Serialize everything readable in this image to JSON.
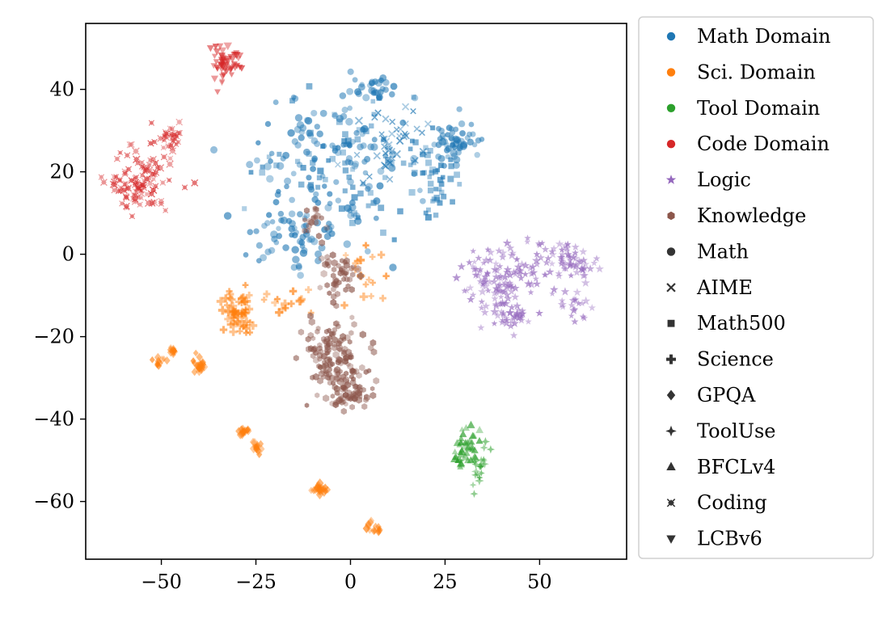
{
  "chart_data": {
    "type": "scatter",
    "title": "",
    "xlabel": "",
    "ylabel": "",
    "xlim": [
      -70,
      73
    ],
    "ylim": [
      -74,
      56
    ],
    "xticks": [
      -50,
      -25,
      0,
      25,
      50
    ],
    "yticks": [
      -60,
      -40,
      -20,
      0,
      20,
      40
    ],
    "xtick_labels": [
      "−50",
      "−25",
      "0",
      "25",
      "50"
    ],
    "ytick_labels": [
      "−60",
      "−40",
      "−20",
      "0",
      "20",
      "40"
    ],
    "grid": false,
    "legend_position": "outside-right",
    "domains": [
      {
        "name": "Math Domain",
        "color": "#1f77b4"
      },
      {
        "name": "Sci. Domain",
        "color": "#ff7f0e"
      },
      {
        "name": "Tool Domain",
        "color": "#2ca02c"
      },
      {
        "name": "Code Domain",
        "color": "#d62728"
      },
      {
        "name": "Logic",
        "color": "#9467bd"
      },
      {
        "name": "Knowledge",
        "color": "#8c564b"
      }
    ],
    "styles": [
      {
        "name": "Math",
        "marker": "circle"
      },
      {
        "name": "AIME",
        "marker": "x"
      },
      {
        "name": "Math500",
        "marker": "square"
      },
      {
        "name": "Science",
        "marker": "plus"
      },
      {
        "name": "GPQA",
        "marker": "diamond"
      },
      {
        "name": "ToolUse",
        "marker": "star4"
      },
      {
        "name": "BFCLv4",
        "marker": "triangle-up"
      },
      {
        "name": "Coding",
        "marker": "x-thin"
      },
      {
        "name": "LCBv6",
        "marker": "triangle-down"
      }
    ],
    "clusters": [
      {
        "domain": "Math Domain",
        "style": "Math",
        "n": 260,
        "regions": [
          {
            "cx": -5,
            "cy": 25,
            "rx": 22,
            "ry": 14,
            "w": 3
          },
          {
            "cx": 5,
            "cy": 40,
            "rx": 4,
            "ry": 3,
            "w": 0.5
          },
          {
            "cx": 28,
            "cy": 27,
            "rx": 6,
            "ry": 5,
            "w": 1
          },
          {
            "cx": -14,
            "cy": 5,
            "rx": 13,
            "ry": 7,
            "w": 1.2
          }
        ]
      },
      {
        "domain": "Math Domain",
        "style": "AIME",
        "n": 45,
        "regions": [
          {
            "cx": 10,
            "cy": 28,
            "rx": 10,
            "ry": 8,
            "w": 1
          }
        ]
      },
      {
        "domain": "Math Domain",
        "style": "Math500",
        "n": 110,
        "regions": [
          {
            "cx": 0,
            "cy": 22,
            "rx": 20,
            "ry": 13,
            "w": 2
          },
          {
            "cx": 22,
            "cy": 18,
            "rx": 6,
            "ry": 7,
            "w": 0.8
          }
        ]
      },
      {
        "domain": "Sci. Domain",
        "style": "Science",
        "n": 90,
        "regions": [
          {
            "cx": -30,
            "cy": -13,
            "rx": 4,
            "ry": 4,
            "w": 2
          },
          {
            "cx": -18,
            "cy": -12,
            "rx": 5,
            "ry": 3,
            "w": 0.8
          },
          {
            "cx": 4,
            "cy": -4,
            "rx": 6,
            "ry": 7,
            "w": 1.2
          },
          {
            "cx": -28,
            "cy": -18,
            "rx": 2,
            "ry": 2,
            "w": 0.4
          }
        ]
      },
      {
        "domain": "Sci. Domain",
        "style": "GPQA",
        "n": 110,
        "regions": [
          {
            "cx": -51,
            "cy": -26,
            "rx": 1.8,
            "ry": 1.4,
            "w": 1
          },
          {
            "cx": -47,
            "cy": -23.5,
            "rx": 1.2,
            "ry": 1,
            "w": 0.5
          },
          {
            "cx": -40,
            "cy": -27.5,
            "rx": 1.6,
            "ry": 1.8,
            "w": 0.7
          },
          {
            "cx": -41,
            "cy": -25,
            "rx": 1,
            "ry": 1,
            "w": 0.3
          },
          {
            "cx": -28.5,
            "cy": -43,
            "rx": 1.2,
            "ry": 1,
            "w": 0.6
          },
          {
            "cx": -25,
            "cy": -47,
            "rx": 1.6,
            "ry": 1.6,
            "w": 0.8
          },
          {
            "cx": -8,
            "cy": -57,
            "rx": 2.5,
            "ry": 1.6,
            "w": 1.1
          },
          {
            "cx": 6,
            "cy": -66.5,
            "rx": 1.8,
            "ry": 1.4,
            "w": 0.9
          }
        ]
      },
      {
        "domain": "Tool Domain",
        "style": "ToolUse",
        "n": 22,
        "regions": [
          {
            "cx": 34,
            "cy": -52,
            "rx": 3,
            "ry": 4,
            "w": 1
          }
        ]
      },
      {
        "domain": "Tool Domain",
        "style": "BFCLv4",
        "n": 45,
        "regions": [
          {
            "cx": 31,
            "cy": -46,
            "rx": 3,
            "ry": 4,
            "w": 1.5
          },
          {
            "cx": 28,
            "cy": -50,
            "rx": 2,
            "ry": 1.5,
            "w": 0.4
          }
        ]
      },
      {
        "domain": "Code Domain",
        "style": "Coding",
        "n": 130,
        "regions": [
          {
            "cx": -55,
            "cy": 17,
            "rx": 7,
            "ry": 7,
            "w": 2
          },
          {
            "cx": -48,
            "cy": 28,
            "rx": 4,
            "ry": 4,
            "w": 1
          },
          {
            "cx": -61,
            "cy": 17,
            "rx": 3,
            "ry": 2,
            "w": 0.3
          }
        ]
      },
      {
        "domain": "Code Domain",
        "style": "LCBv6",
        "n": 55,
        "regions": [
          {
            "cx": -33,
            "cy": 46,
            "rx": 3.5,
            "ry": 3.5,
            "w": 1
          }
        ]
      },
      {
        "domain": "Logic",
        "style": "Logic",
        "n": 240,
        "regions": [
          {
            "cx": 40,
            "cy": -5,
            "rx": 10,
            "ry": 7,
            "w": 2
          },
          {
            "cx": 57,
            "cy": -2,
            "rx": 7,
            "ry": 5,
            "w": 1.3
          },
          {
            "cx": 43,
            "cy": -15,
            "rx": 5,
            "ry": 3,
            "w": 0.6
          },
          {
            "cx": 60,
            "cy": -13,
            "rx": 4,
            "ry": 3,
            "w": 0.4
          }
        ]
      },
      {
        "domain": "Knowledge",
        "style": "Knowledge",
        "n": 260,
        "regions": [
          {
            "cx": -5,
            "cy": -25,
            "rx": 8,
            "ry": 9,
            "w": 3
          },
          {
            "cx": 0,
            "cy": -34,
            "rx": 5,
            "ry": 3,
            "w": 1
          },
          {
            "cx": -3,
            "cy": -5,
            "rx": 4,
            "ry": 5,
            "w": 0.8
          },
          {
            "cx": -10,
            "cy": 8,
            "rx": 3,
            "ry": 3,
            "w": 0.3
          }
        ]
      }
    ]
  }
}
